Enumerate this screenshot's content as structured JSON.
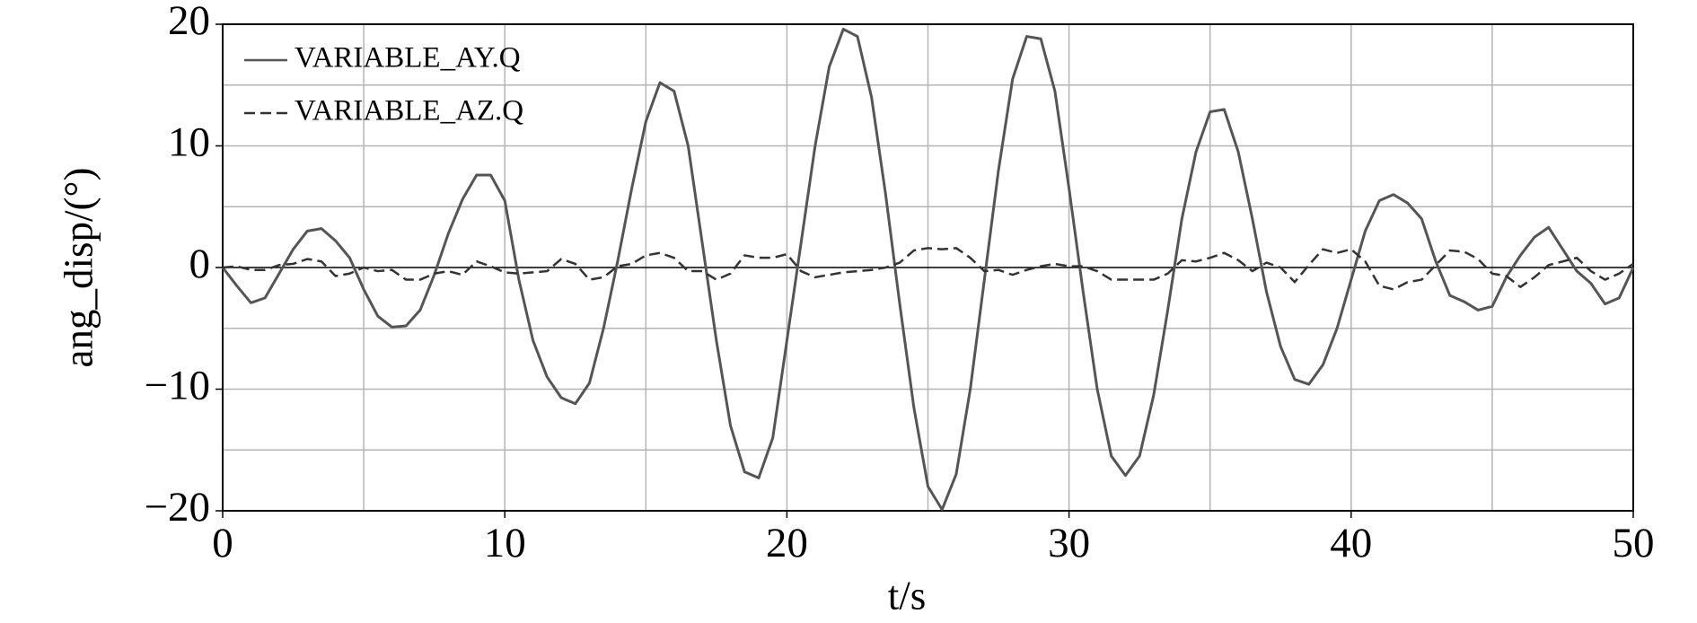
{
  "chart_data": {
    "type": "line",
    "xlabel": "t/s",
    "ylabel": "ang_disp/(°)",
    "xlim": [
      0,
      50
    ],
    "ylim": [
      -20,
      20
    ],
    "xticks": [
      0,
      10,
      20,
      30,
      40,
      50
    ],
    "yticks": [
      {
        "value": -20,
        "label": "−20"
      },
      {
        "value": -10,
        "label": "−10"
      },
      0,
      10,
      20
    ],
    "xgrid": [
      5,
      10,
      15,
      20,
      25,
      30,
      35,
      40,
      45
    ],
    "ygrid": [
      -15,
      -10,
      -5,
      5,
      10,
      15
    ],
    "zero_line": true,
    "legend": "upper left",
    "x": [
      0,
      0.5,
      1,
      1.5,
      2,
      2.5,
      3,
      3.5,
      4,
      4.5,
      5,
      5.5,
      6,
      6.5,
      7,
      7.5,
      8,
      8.5,
      9,
      9.5,
      10,
      10.5,
      11,
      11.5,
      12,
      12.5,
      13,
      13.5,
      14,
      14.5,
      15,
      15.5,
      16,
      16.5,
      17,
      17.5,
      18,
      18.5,
      19,
      19.5,
      20,
      20.5,
      21,
      21.5,
      22,
      22.5,
      23,
      23.5,
      24,
      24.5,
      25,
      25.5,
      26,
      26.5,
      27,
      27.5,
      28,
      28.5,
      29,
      29.5,
      30,
      30.5,
      31,
      31.5,
      32,
      32.5,
      33,
      33.5,
      34,
      34.5,
      35,
      35.5,
      36,
      36.5,
      37,
      37.5,
      38,
      38.5,
      39,
      39.5,
      40,
      40.5,
      41,
      41.5,
      42,
      42.5,
      43,
      43.5,
      44,
      44.5,
      45,
      45.5,
      46,
      46.5,
      47,
      47.5,
      48,
      48.5,
      49,
      49.5,
      50
    ],
    "series": [
      {
        "name": "VARIABLE_AY.Q",
        "color": "#555555",
        "dash": "solid",
        "values": [
          0,
          -1.5,
          -2.9,
          -2.5,
          -0.5,
          1.5,
          3.0,
          3.2,
          2.2,
          0.8,
          -1.8,
          -4.0,
          -4.9,
          -4.8,
          -3.5,
          -0.6,
          2.8,
          5.6,
          7.6,
          7.6,
          5.5,
          -1.0,
          -6.0,
          -9.0,
          -10.7,
          -11.2,
          -9.5,
          -5.0,
          0.5,
          6.5,
          12.0,
          15.2,
          14.5,
          10.0,
          2.0,
          -6.0,
          -13.0,
          -16.8,
          -17.3,
          -14.0,
          -6.0,
          2.0,
          10.0,
          16.5,
          19.6,
          19.0,
          14.0,
          6.0,
          -3.0,
          -11.5,
          -18.0,
          -19.9,
          -17.0,
          -10.0,
          -1.0,
          8.0,
          15.5,
          19.0,
          18.8,
          14.5,
          6.5,
          -2.0,
          -10.0,
          -15.5,
          -17.1,
          -15.5,
          -10.5,
          -3.5,
          4.0,
          9.5,
          12.8,
          13.0,
          9.5,
          4.0,
          -2.0,
          -6.5,
          -9.2,
          -9.6,
          -8.0,
          -5.0,
          -1.0,
          3.0,
          5.5,
          6.0,
          5.3,
          4.0,
          0.5,
          -2.3,
          -2.8,
          -3.5,
          -3.2,
          -0.8,
          1.0,
          2.5,
          3.3,
          1.5,
          -0.3,
          -1.3,
          -3.0,
          -2.5,
          0
        ]
      },
      {
        "name": "VARIABLE_AZ.Q",
        "color": "#333333",
        "dash": "dashed",
        "values": [
          0,
          0.1,
          -0.2,
          -0.2,
          0.2,
          0.3,
          0.7,
          0.5,
          -0.7,
          -0.5,
          0,
          -0.3,
          -0.2,
          -1.0,
          -1.0,
          -0.5,
          -0.3,
          -0.6,
          0.5,
          0.1,
          -0.4,
          -0.5,
          -0.4,
          -0.3,
          0.7,
          0.3,
          -1.0,
          -0.8,
          0.1,
          0.3,
          1.0,
          1.2,
          0.8,
          -0.3,
          -0.3,
          -1.0,
          -0.5,
          1.0,
          0.8,
          0.8,
          1.1,
          -0.3,
          -0.8,
          -0.6,
          -0.4,
          -0.3,
          -0.2,
          0,
          0.4,
          1.4,
          1.6,
          1.5,
          1.6,
          0.8,
          -0.3,
          -0.2,
          -0.6,
          -0.2,
          0.1,
          0.3,
          0.1,
          0.1,
          -0.3,
          -1.0,
          -1.0,
          -1.0,
          -1.0,
          -0.5,
          0.6,
          0.5,
          0.8,
          1.2,
          0.6,
          -0.3,
          0.4,
          0,
          -1.2,
          0.2,
          1.5,
          1.2,
          1.5,
          0.5,
          -1.5,
          -1.8,
          -1.2,
          -1.0,
          0.2,
          1.4,
          1.3,
          0.7,
          -0.5,
          -0.7,
          -1.6,
          -0.8,
          0.2,
          0.5,
          0.8,
          -0.3,
          -1.0,
          -0.5,
          0.3
        ]
      }
    ]
  }
}
